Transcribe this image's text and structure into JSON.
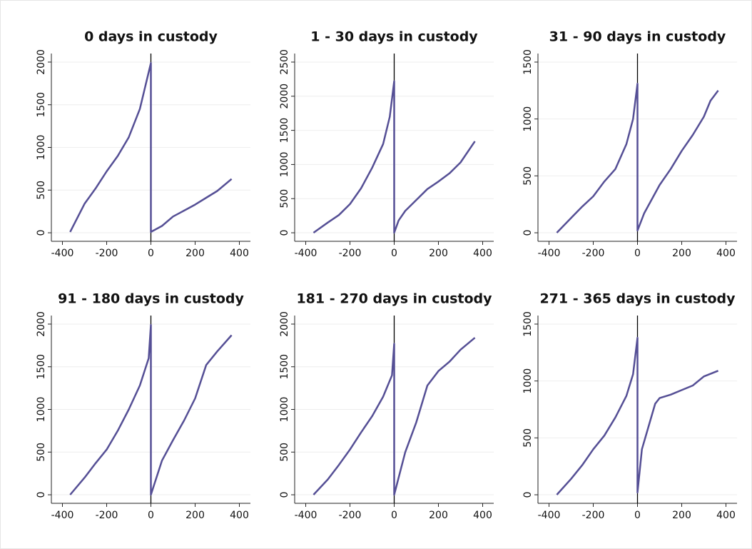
{
  "chart_data": [
    {
      "type": "line",
      "title": "0 days in custody",
      "color": "#554f95",
      "vline": 0,
      "xlim": [
        -450,
        450
      ],
      "xticks": [
        -400,
        -200,
        0,
        200,
        400
      ],
      "ylim": [
        -100,
        2100
      ],
      "yticks": [
        0,
        500,
        1000,
        1500,
        2000
      ],
      "grid": true,
      "x": [
        -365,
        -300,
        -250,
        -200,
        -150,
        -100,
        -50,
        0,
        0,
        50,
        100,
        150,
        200,
        250,
        300,
        365
      ],
      "values": [
        10,
        340,
        520,
        720,
        900,
        1120,
        1450,
        1990,
        10,
        80,
        190,
        260,
        330,
        410,
        490,
        630
      ]
    },
    {
      "type": "line",
      "title": "1 - 30 days in custody",
      "color": "#554f95",
      "vline": 0,
      "xlim": [
        -450,
        450
      ],
      "xticks": [
        -400,
        -200,
        0,
        200,
        400
      ],
      "ylim": [
        -125,
        2625
      ],
      "yticks": [
        0,
        500,
        1000,
        1500,
        2000,
        2500
      ],
      "grid": true,
      "x": [
        -365,
        -300,
        -250,
        -200,
        -150,
        -100,
        -50,
        -20,
        0,
        0,
        20,
        50,
        100,
        150,
        200,
        250,
        300,
        365
      ],
      "values": [
        0,
        150,
        260,
        420,
        650,
        950,
        1300,
        1700,
        2220,
        0,
        180,
        320,
        480,
        640,
        750,
        870,
        1030,
        1340
      ]
    },
    {
      "type": "line",
      "title": "31 - 90 days in custody",
      "color": "#554f95",
      "vline": 0,
      "xlim": [
        -450,
        450
      ],
      "xticks": [
        -400,
        -200,
        0,
        200,
        400
      ],
      "ylim": [
        -75,
        1575
      ],
      "yticks": [
        0,
        500,
        1000,
        1500
      ],
      "grid": true,
      "x": [
        -365,
        -300,
        -250,
        -200,
        -150,
        -100,
        -50,
        -20,
        0,
        0,
        30,
        100,
        150,
        200,
        250,
        300,
        330,
        365
      ],
      "values": [
        0,
        130,
        230,
        320,
        450,
        560,
        780,
        1000,
        1310,
        20,
        170,
        420,
        560,
        720,
        860,
        1020,
        1160,
        1250
      ]
    },
    {
      "type": "line",
      "title": "91 - 180 days in custody",
      "color": "#554f95",
      "vline": 0,
      "xlim": [
        -450,
        450
      ],
      "xticks": [
        -400,
        -200,
        0,
        200,
        400
      ],
      "ylim": [
        -100,
        2100
      ],
      "yticks": [
        0,
        500,
        1000,
        1500,
        2000
      ],
      "grid": true,
      "x": [
        -365,
        -300,
        -250,
        -200,
        -150,
        -100,
        -50,
        -10,
        0,
        0,
        50,
        100,
        150,
        200,
        250,
        300,
        365
      ],
      "values": [
        0,
        200,
        370,
        530,
        750,
        1000,
        1280,
        1600,
        1990,
        0,
        400,
        640,
        870,
        1130,
        1520,
        1680,
        1870
      ]
    },
    {
      "type": "line",
      "title": "181 - 270 days in custody",
      "color": "#554f95",
      "vline": 0,
      "xlim": [
        -450,
        450
      ],
      "xticks": [
        -400,
        -200,
        0,
        200,
        400
      ],
      "ylim": [
        -100,
        2100
      ],
      "yticks": [
        0,
        500,
        1000,
        1500,
        2000
      ],
      "grid": true,
      "x": [
        -365,
        -300,
        -250,
        -200,
        -150,
        -100,
        -50,
        -10,
        0,
        0,
        30,
        50,
        100,
        150,
        200,
        250,
        300,
        365
      ],
      "values": [
        0,
        180,
        350,
        530,
        730,
        920,
        1150,
        1400,
        1770,
        0,
        300,
        500,
        850,
        1280,
        1450,
        1560,
        1700,
        1840
      ]
    },
    {
      "type": "line",
      "title": "271 - 365 days in custody",
      "color": "#554f95",
      "vline": 0,
      "xlim": [
        -450,
        450
      ],
      "xticks": [
        -400,
        -200,
        0,
        200,
        400
      ],
      "ylim": [
        -75,
        1575
      ],
      "yticks": [
        0,
        500,
        1000,
        1500
      ],
      "grid": true,
      "x": [
        -365,
        -300,
        -250,
        -200,
        -150,
        -100,
        -50,
        -20,
        0,
        0,
        20,
        50,
        80,
        100,
        150,
        200,
        250,
        300,
        365
      ],
      "values": [
        0,
        140,
        260,
        400,
        520,
        680,
        870,
        1060,
        1380,
        20,
        400,
        600,
        800,
        850,
        880,
        920,
        960,
        1040,
        1090
      ]
    }
  ]
}
